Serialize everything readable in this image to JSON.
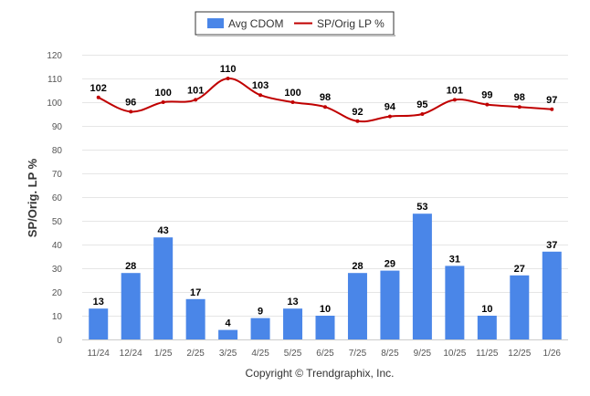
{
  "chart_data": {
    "type": "bar+line",
    "categories": [
      "11/24",
      "12/24",
      "1/25",
      "2/25",
      "3/25",
      "4/25",
      "5/25",
      "6/25",
      "7/25",
      "8/25",
      "9/25",
      "10/25",
      "11/25",
      "12/25",
      "1/26"
    ],
    "series": [
      {
        "name": "Avg CDOM",
        "type": "bar",
        "color": "#4a86e8",
        "values": [
          13,
          28,
          43,
          17,
          4,
          9,
          13,
          10,
          28,
          29,
          53,
          31,
          10,
          27,
          37
        ]
      },
      {
        "name": "SP/Orig LP %",
        "type": "line",
        "color": "#c00000",
        "values": [
          102,
          96,
          100,
          101,
          110,
          103,
          100,
          98,
          92,
          94,
          95,
          101,
          99,
          98,
          97
        ]
      }
    ],
    "ylabel": "SP/Orig. LP %",
    "xlabel": "",
    "ylim": [
      0,
      120
    ],
    "yticks": [
      "0",
      "10",
      "20",
      "30",
      "40",
      "50",
      "60",
      "70",
      "80",
      "90",
      "100",
      "110",
      "120"
    ],
    "grid": true,
    "legend_position": "top-center"
  },
  "legend": {
    "items": [
      "Avg CDOM",
      "SP/Orig LP %"
    ]
  },
  "credit": "Copyright © Trendgraphix, Inc."
}
